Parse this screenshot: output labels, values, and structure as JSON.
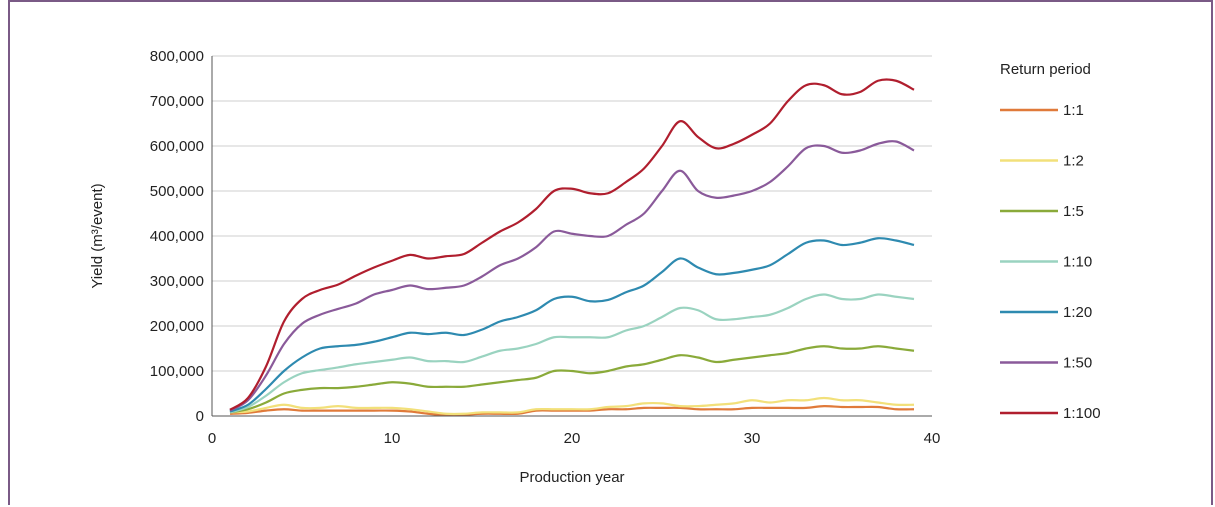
{
  "chart_data": {
    "type": "line",
    "title": "",
    "xlabel": "Production year",
    "ylabel": "Yield (m³/event)",
    "xlim": [
      0,
      40
    ],
    "ylim": [
      0,
      800000
    ],
    "xticks": [
      0,
      10,
      20,
      30,
      40
    ],
    "yticks": [
      0,
      100000,
      200000,
      300000,
      400000,
      500000,
      600000,
      700000,
      800000
    ],
    "xtick_labels": [
      "0",
      "10",
      "20",
      "30",
      "40"
    ],
    "ytick_labels": [
      "0",
      "100,000",
      "200,000",
      "300,000",
      "400,000",
      "500,000",
      "600,000",
      "700,000",
      "800,000"
    ],
    "grid": "horizontal",
    "legend": {
      "title": "Return period",
      "placement": "right"
    },
    "x": [
      1,
      2,
      3,
      4,
      5,
      6,
      7,
      8,
      9,
      10,
      11,
      12,
      13,
      14,
      15,
      16,
      17,
      18,
      19,
      20,
      21,
      22,
      23,
      24,
      25,
      26,
      27,
      28,
      29,
      30,
      31,
      32,
      33,
      34,
      35,
      36,
      37,
      38,
      39
    ],
    "series": [
      {
        "name": "1:1",
        "color": "#e07a3a",
        "values": [
          5000,
          7000,
          12000,
          15000,
          12000,
          12000,
          12000,
          12000,
          12000,
          12000,
          10000,
          5000,
          2000,
          3000,
          5000,
          5000,
          5000,
          12000,
          12000,
          12000,
          12000,
          15000,
          15000,
          18000,
          18000,
          18000,
          15000,
          15000,
          15000,
          18000,
          18000,
          18000,
          18000,
          22000,
          20000,
          20000,
          20000,
          15000,
          15000
        ]
      },
      {
        "name": "1:2",
        "color": "#f2e07a",
        "values": [
          8000,
          10000,
          18000,
          25000,
          18000,
          18000,
          22000,
          18000,
          18000,
          18000,
          15000,
          10000,
          5000,
          5000,
          8000,
          8000,
          8000,
          15000,
          15000,
          15000,
          15000,
          20000,
          22000,
          28000,
          28000,
          22000,
          22000,
          25000,
          28000,
          35000,
          30000,
          35000,
          35000,
          40000,
          35000,
          35000,
          30000,
          25000,
          25000
        ]
      },
      {
        "name": "1:5",
        "color": "#8aaa3a",
        "values": [
          8000,
          15000,
          30000,
          50000,
          58000,
          62000,
          62000,
          65000,
          70000,
          75000,
          72000,
          65000,
          65000,
          65000,
          70000,
          75000,
          80000,
          85000,
          100000,
          100000,
          95000,
          100000,
          110000,
          115000,
          125000,
          135000,
          130000,
          120000,
          125000,
          130000,
          135000,
          140000,
          150000,
          155000,
          150000,
          150000,
          155000,
          150000,
          145000
        ]
      },
      {
        "name": "1:10",
        "color": "#9ad3c0",
        "values": [
          8000,
          20000,
          45000,
          75000,
          95000,
          102000,
          108000,
          115000,
          120000,
          125000,
          130000,
          122000,
          122000,
          120000,
          132000,
          145000,
          150000,
          160000,
          175000,
          175000,
          175000,
          175000,
          190000,
          200000,
          220000,
          240000,
          235000,
          215000,
          215000,
          220000,
          225000,
          240000,
          260000,
          270000,
          260000,
          260000,
          270000,
          265000,
          260000
        ]
      },
      {
        "name": "1:20",
        "color": "#2e8ab0",
        "values": [
          10000,
          25000,
          60000,
          100000,
          130000,
          150000,
          155000,
          158000,
          165000,
          175000,
          185000,
          182000,
          185000,
          180000,
          192000,
          210000,
          220000,
          235000,
          260000,
          265000,
          255000,
          258000,
          275000,
          290000,
          320000,
          350000,
          330000,
          315000,
          318000,
          325000,
          335000,
          360000,
          385000,
          390000,
          380000,
          385000,
          395000,
          390000,
          380000
        ]
      },
      {
        "name": "1:50",
        "color": "#8a5a9a",
        "values": [
          12000,
          35000,
          90000,
          160000,
          205000,
          225000,
          238000,
          250000,
          270000,
          280000,
          290000,
          282000,
          285000,
          290000,
          310000,
          335000,
          350000,
          375000,
          410000,
          405000,
          400000,
          400000,
          425000,
          450000,
          500000,
          545000,
          500000,
          485000,
          490000,
          500000,
          520000,
          555000,
          595000,
          600000,
          585000,
          590000,
          605000,
          610000,
          590000
        ]
      },
      {
        "name": "1:100",
        "color": "#b01e2e",
        "values": [
          14000,
          40000,
          110000,
          210000,
          260000,
          280000,
          292000,
          312000,
          330000,
          345000,
          358000,
          350000,
          355000,
          360000,
          385000,
          410000,
          430000,
          460000,
          500000,
          505000,
          495000,
          495000,
          520000,
          550000,
          600000,
          655000,
          620000,
          595000,
          605000,
          625000,
          650000,
          700000,
          735000,
          735000,
          715000,
          720000,
          745000,
          745000,
          725000
        ]
      }
    ]
  }
}
